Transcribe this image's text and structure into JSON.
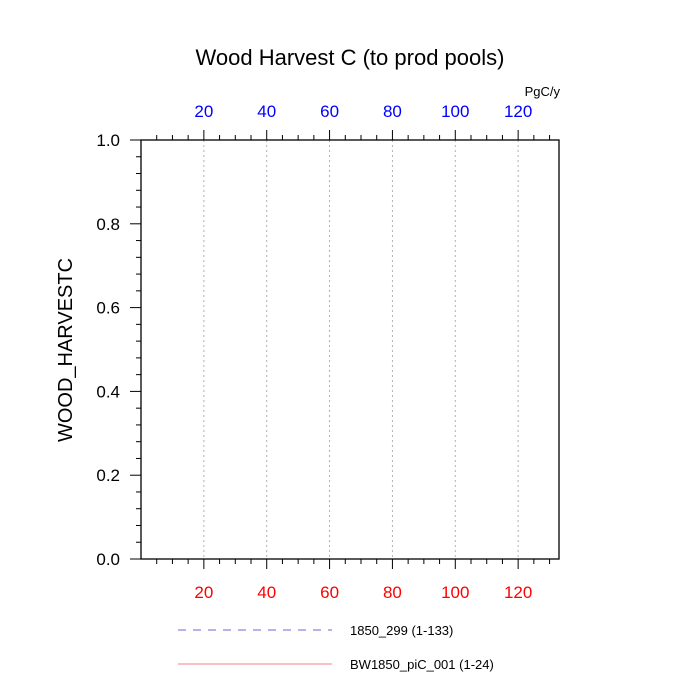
{
  "chart_data": {
    "type": "line",
    "title": "Wood Harvest C (to prod pools)",
    "ylabel": "WOOD_HARVESTC",
    "top_axis_unit": "PgC/y",
    "xlim": [
      0,
      133
    ],
    "ylim": [
      0,
      1.0
    ],
    "x_ticks_bottom": [
      "20",
      "40",
      "60",
      "80",
      "100",
      "120"
    ],
    "x_ticks_top": [
      "20",
      "40",
      "60",
      "80",
      "100",
      "120"
    ],
    "y_ticks": [
      "0.0",
      "0.2",
      "0.4",
      "0.6",
      "0.8",
      "1.0"
    ],
    "grid": "vertical dotted at major x ticks",
    "bottom_tick_color": "#ff0000",
    "top_tick_color": "#0000ff",
    "series": [
      {
        "name": "1850_299 (1-133)",
        "color": "#6a6ad0",
        "dash": "dashed",
        "x_range": [
          1,
          133
        ],
        "values": [
          0,
          0
        ]
      },
      {
        "name": "BW1850_piC_001 (1-24)",
        "color": "#f08080",
        "dash": "solid",
        "x_range": [
          1,
          24
        ],
        "values": [
          0,
          0
        ]
      }
    ]
  }
}
